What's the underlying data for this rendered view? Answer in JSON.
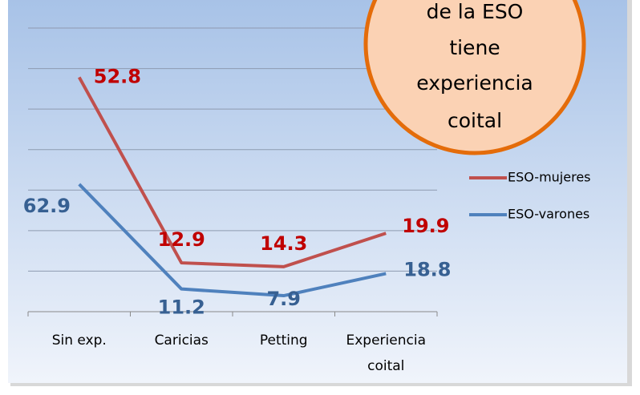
{
  "chart_data": {
    "type": "line",
    "stacked": true,
    "categories": [
      "Sin exp.",
      "Caricias",
      "Petting",
      "Experiencia coital"
    ],
    "series": [
      {
        "name": "ESO-mujeres",
        "color": "#c0504d",
        "label_color": "#c00000",
        "values": [
          52.8,
          12.9,
          14.3,
          19.9
        ]
      },
      {
        "name": "ESO-varones",
        "color": "#4f81bd",
        "label_color": "#376092",
        "values": [
          62.9,
          11.2,
          7.9,
          18.8
        ]
      }
    ],
    "ylim": [
      0,
      140
    ],
    "yticks": [
      0,
      20,
      40,
      60,
      80,
      100,
      120,
      140
    ],
    "grid": true,
    "legend": "right",
    "annotation": [
      "de la ESO",
      "tiene",
      "experiencia",
      "coital"
    ]
  }
}
